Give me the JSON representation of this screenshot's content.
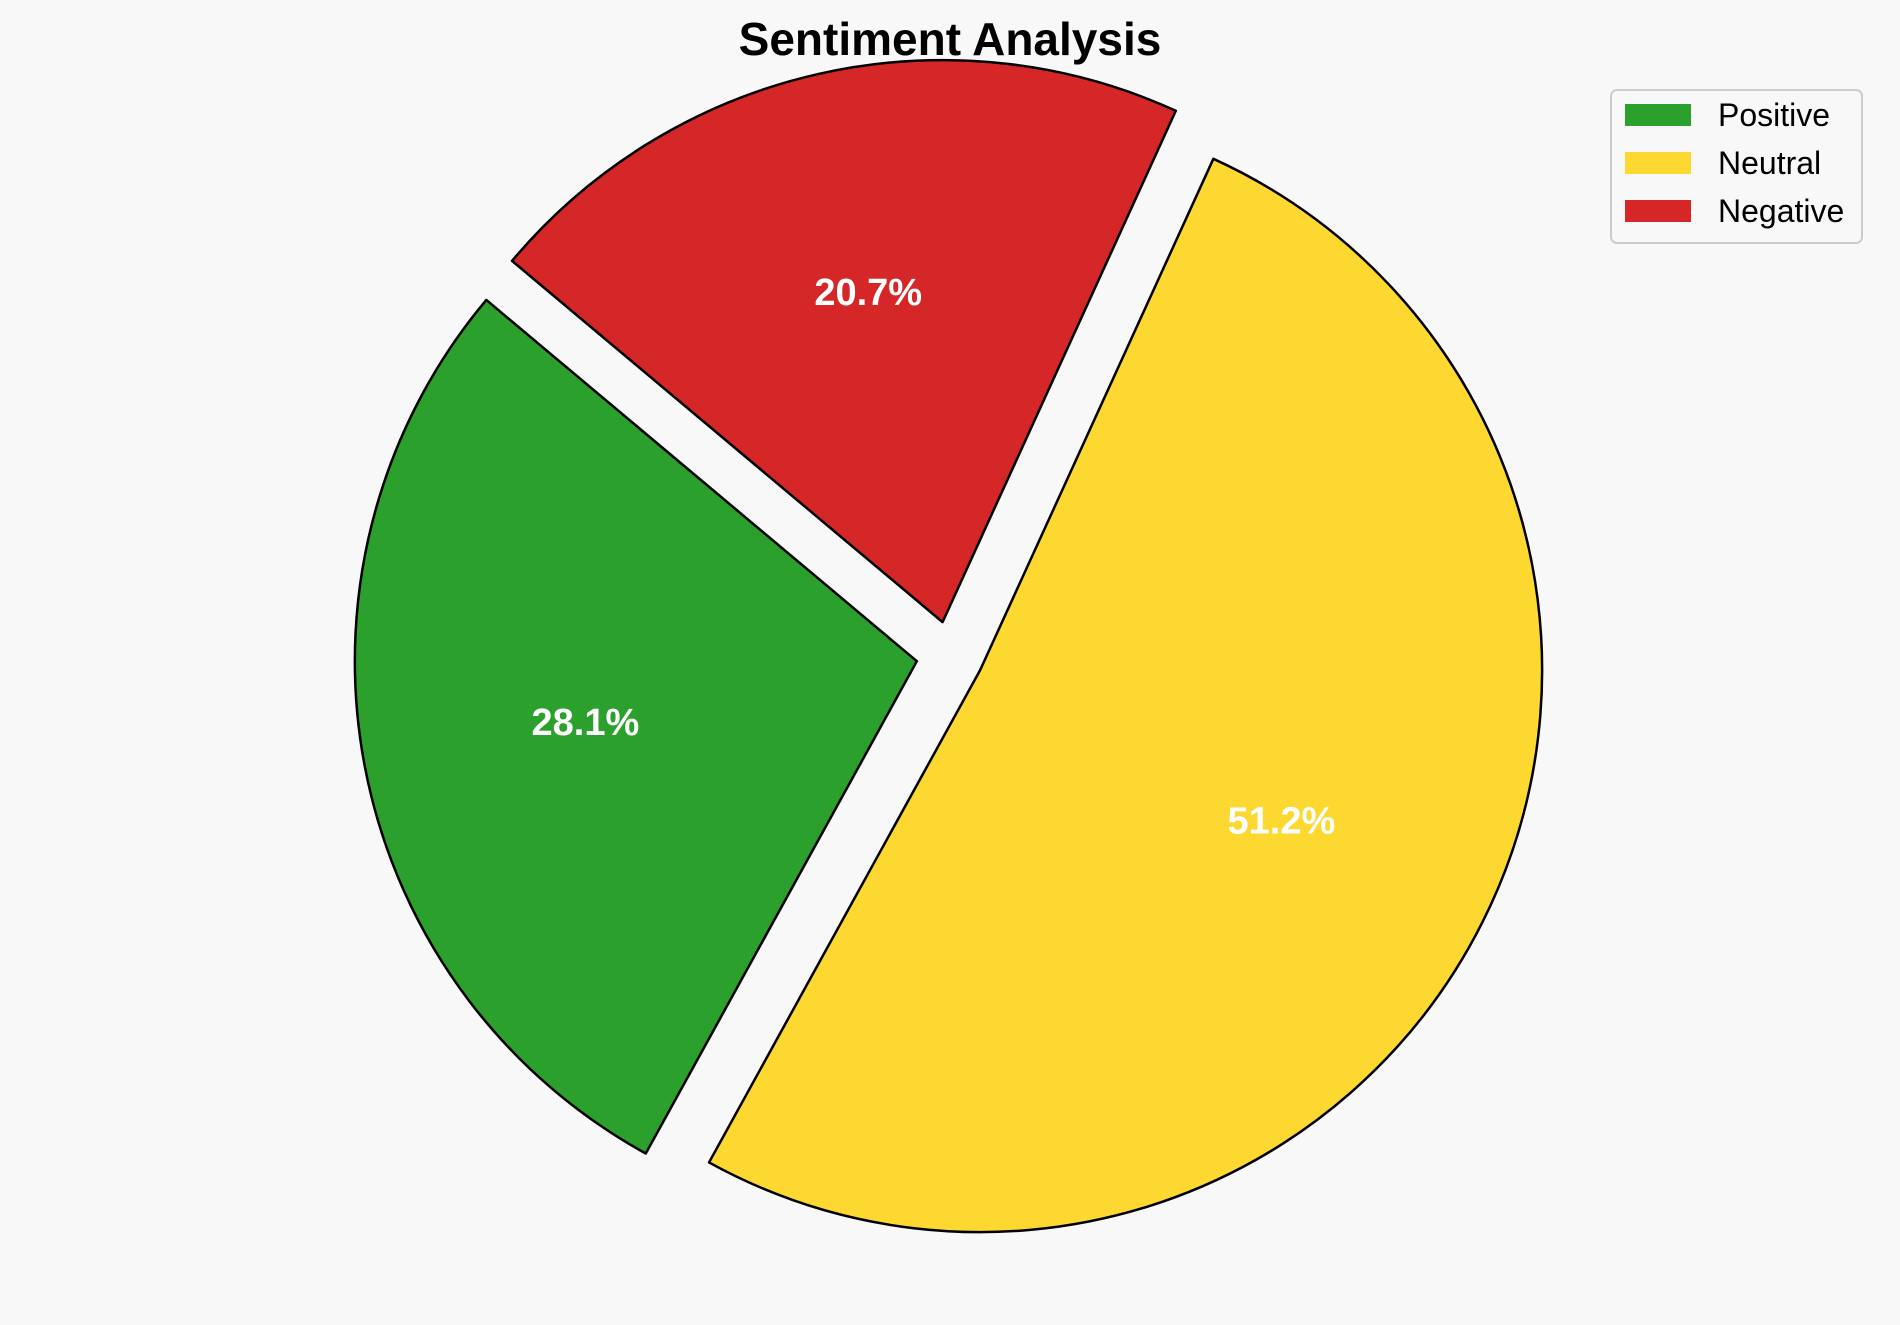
{
  "chart_data": {
    "type": "pie",
    "title": "Sentiment Analysis",
    "slices": [
      {
        "label": "Positive",
        "value": 28.1,
        "display": "28.1%",
        "color": "#2ca02c"
      },
      {
        "label": "Neutral",
        "value": 51.2,
        "display": "51.2%",
        "color": "#fdd831"
      },
      {
        "label": "Negative",
        "value": 20.7,
        "display": "20.7%",
        "color": "#d62728"
      }
    ],
    "exploded": true,
    "edge_color": "#000000",
    "label_color": "#ffffff",
    "legend_position": "top-right"
  }
}
